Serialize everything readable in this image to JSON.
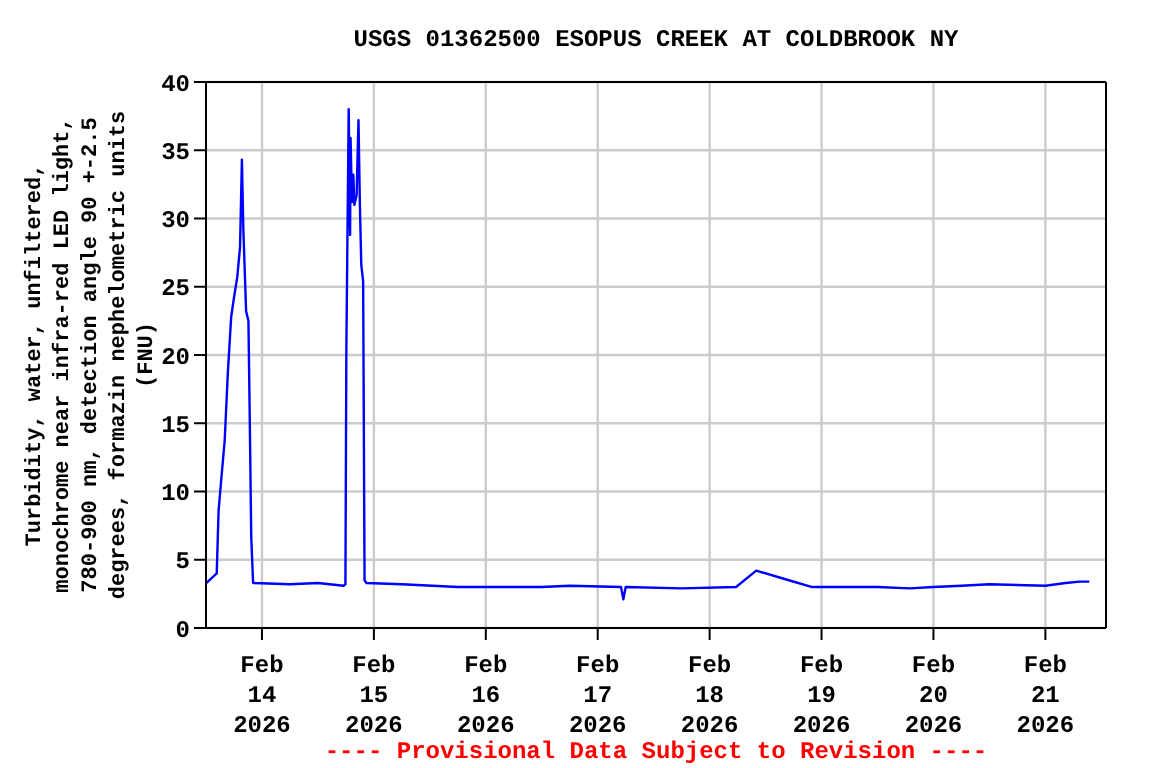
{
  "chart_data": {
    "type": "line",
    "title": "USGS 01362500 ESOPUS CREEK AT COLDBROOK NY",
    "ylabel": "Turbidity, water, unfiltered,\nmonochrome near infra-red LED light,\n780-900 nm, detection angle 90 +-2.5\ndegrees, formazin nephelometric units\n(FNU)",
    "annotations": [
      "---- Provisional Data Subject to Revision ----"
    ],
    "series": [
      {
        "color": "#0000ff",
        "x": [
          "2026-02-13T12:06",
          "2026-02-13T14:18",
          "2026-02-13T14:42",
          "2026-02-13T15:18",
          "2026-02-13T16:00",
          "2026-02-13T16:42",
          "2026-02-13T17:24",
          "2026-02-13T18:00",
          "2026-02-13T18:42",
          "2026-02-13T19:18",
          "2026-02-13T19:42",
          "2026-02-13T20:00",
          "2026-02-13T20:36",
          "2026-02-13T21:06",
          "2026-02-13T21:24",
          "2026-02-13T21:42",
          "2026-02-13T22:06",
          "2026-02-14T06:00",
          "2026-02-14T12:00",
          "2026-02-14T17:30",
          "2026-02-14T17:54",
          "2026-02-14T18:06",
          "2026-02-14T18:36",
          "2026-02-14T18:54",
          "2026-02-14T19:00",
          "2026-02-14T19:18",
          "2026-02-14T19:36",
          "2026-02-14T19:48",
          "2026-02-14T20:18",
          "2026-02-14T20:42",
          "2026-02-14T21:00",
          "2026-02-14T21:18",
          "2026-02-14T21:42",
          "2026-02-14T22:00",
          "2026-02-14T22:24",
          "2026-02-15T06:00",
          "2026-02-15T18:00",
          "2026-02-16T12:00",
          "2026-02-16T18:00",
          "2026-02-17T05:00",
          "2026-02-17T05:30",
          "2026-02-17T06:00",
          "2026-02-17T18:00",
          "2026-02-18T05:40",
          "2026-02-18T10:00",
          "2026-02-18T15:00",
          "2026-02-18T22:00",
          "2026-02-19T12:00",
          "2026-02-19T19:00",
          "2026-02-20T00:00",
          "2026-02-20T06:00",
          "2026-02-20T12:00",
          "2026-02-21T00:00",
          "2026-02-21T04:20",
          "2026-02-21T07:20",
          "2026-02-21T09:25"
        ],
        "values": [
          3.3,
          4.0,
          8.6,
          11,
          13.7,
          18.8,
          22.8,
          24.2,
          25.7,
          27.9,
          34.3,
          29.3,
          23.2,
          22.5,
          14.9,
          6.7,
          3.3,
          3.2,
          3.3,
          3.1,
          3.2,
          20.5,
          38.0,
          28.8,
          35.9,
          31.2,
          33.2,
          31.0,
          31.7,
          37.2,
          31.0,
          26.6,
          25.4,
          3.5,
          3.3,
          3.2,
          3.0,
          3.0,
          3.1,
          3.0,
          2.1,
          3.0,
          2.9,
          3.0,
          4.2,
          3.7,
          3.0,
          3.0,
          2.9,
          3.0,
          3.1,
          3.2,
          3.1,
          3.3,
          3.4,
          3.4
        ]
      }
    ],
    "xlim": [
      "2026-02-13T12:00",
      "2026-02-21T13:00"
    ],
    "xticks": [
      {
        "value": "2026-02-14",
        "label": "Feb\n14\n2026"
      },
      {
        "value": "2026-02-15",
        "label": "Feb\n15\n2026"
      },
      {
        "value": "2026-02-16",
        "label": "Feb\n16\n2026"
      },
      {
        "value": "2026-02-17",
        "label": "Feb\n17\n2026"
      },
      {
        "value": "2026-02-18",
        "label": "Feb\n18\n2026"
      },
      {
        "value": "2026-02-19",
        "label": "Feb\n19\n2026"
      },
      {
        "value": "2026-02-20",
        "label": "Feb\n20\n2026"
      },
      {
        "value": "2026-02-21",
        "label": "Feb\n21\n2026"
      }
    ],
    "ylim": [
      0,
      40
    ],
    "yticks": [
      0,
      5,
      10,
      15,
      20,
      25,
      30,
      35,
      40
    ],
    "grid": true,
    "legend": false,
    "marker": "none",
    "line_style": "solid"
  }
}
